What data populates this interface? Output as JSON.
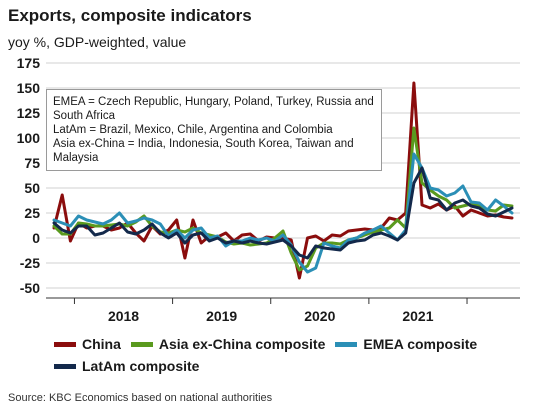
{
  "header": {
    "title": "Exports, composite indicators",
    "subtitle": "yoy %, GDP-weighted, value"
  },
  "note": {
    "lines": [
      "EMEA = Czech Republic, Hungary, Poland, Turkey, Russia and South Africa",
      "LatAm = Brazil, Mexico, Chile, Argentina and Colombia",
      "Asia ex-China = India, Indonesia, South Korea, Taiwan and Malaysia"
    ]
  },
  "source": "Source: KBC Economics based on national authorities",
  "colors": {
    "china": "#8b0d0d",
    "asia": "#5a9a1e",
    "emea": "#2b8fb6",
    "latam": "#13294b",
    "grid": "#d0d0d0",
    "axis": "#333333"
  },
  "chart_data": {
    "type": "line",
    "x_unit": "month",
    "x_start": "2017-10",
    "x_end": "2021-10",
    "x_ticks": [
      "2018",
      "2019",
      "2020",
      "2021"
    ],
    "ylim": [
      -50,
      175
    ],
    "y_ticks": [
      175,
      150,
      125,
      100,
      75,
      50,
      25,
      0,
      -25,
      -50
    ],
    "y_tick_labels": [
      "175",
      "150",
      "125",
      "100",
      "75",
      "50",
      "25",
      "0",
      "-25",
      "-50"
    ],
    "grid": "horizontal",
    "legend_placement": "bottom",
    "series": [
      {
        "name": "China",
        "color_key": "china",
        "values": [
          10,
          43,
          -3,
          15,
          10,
          12,
          12,
          8,
          10,
          15,
          5,
          -3,
          12,
          4,
          8,
          18,
          -20,
          18,
          -5,
          2,
          1,
          5,
          -3,
          3,
          4,
          -3,
          1,
          0,
          0,
          -2,
          -40,
          0,
          2,
          -3,
          3,
          2,
          7,
          8,
          9,
          8,
          10,
          20,
          18,
          25,
          155,
          33,
          30,
          34,
          28,
          32,
          22,
          28,
          25,
          22,
          23,
          21,
          20
        ]
      },
      {
        "name": "Asia ex-China composite",
        "color_key": "asia",
        "values": [
          12,
          4,
          4,
          15,
          14,
          12,
          12,
          13,
          14,
          12,
          16,
          22,
          12,
          6,
          5,
          8,
          6,
          10,
          5,
          3,
          1,
          -4,
          -6,
          -5,
          -7,
          -6,
          -5,
          0,
          7,
          -15,
          -32,
          -28,
          -10,
          -5,
          -5,
          -6,
          -2,
          0,
          3,
          6,
          8,
          10,
          18,
          10,
          110,
          55,
          48,
          42,
          38,
          30,
          32,
          34,
          32,
          28,
          27,
          33,
          32
        ]
      },
      {
        "name": "EMEA composite",
        "color_key": "emea",
        "values": [
          18,
          15,
          12,
          22,
          18,
          16,
          14,
          18,
          25,
          15,
          17,
          20,
          18,
          14,
          2,
          8,
          0,
          8,
          10,
          0,
          2,
          -8,
          -3,
          -3,
          0,
          -2,
          0,
          -3,
          3,
          -7,
          -24,
          -34,
          -30,
          -5,
          -8,
          -10,
          -2,
          0,
          5,
          8,
          12,
          5,
          -2,
          8,
          84,
          70,
          50,
          48,
          42,
          45,
          52,
          36,
          35,
          28,
          38,
          32,
          25
        ]
      },
      {
        "name": "LatAm composite",
        "color_key": "latam",
        "values": [
          15,
          8,
          5,
          12,
          12,
          3,
          5,
          10,
          15,
          6,
          4,
          8,
          14,
          5,
          0,
          5,
          -5,
          3,
          5,
          -3,
          0,
          -5,
          -3,
          -5,
          -3,
          -5,
          -6,
          -4,
          -2,
          -8,
          -17,
          -20,
          -8,
          -10,
          -11,
          -12,
          -5,
          -3,
          -2,
          3,
          5,
          2,
          -2,
          5,
          55,
          70,
          40,
          38,
          28,
          35,
          38,
          32,
          30,
          24,
          22,
          26,
          30
        ]
      }
    ]
  }
}
